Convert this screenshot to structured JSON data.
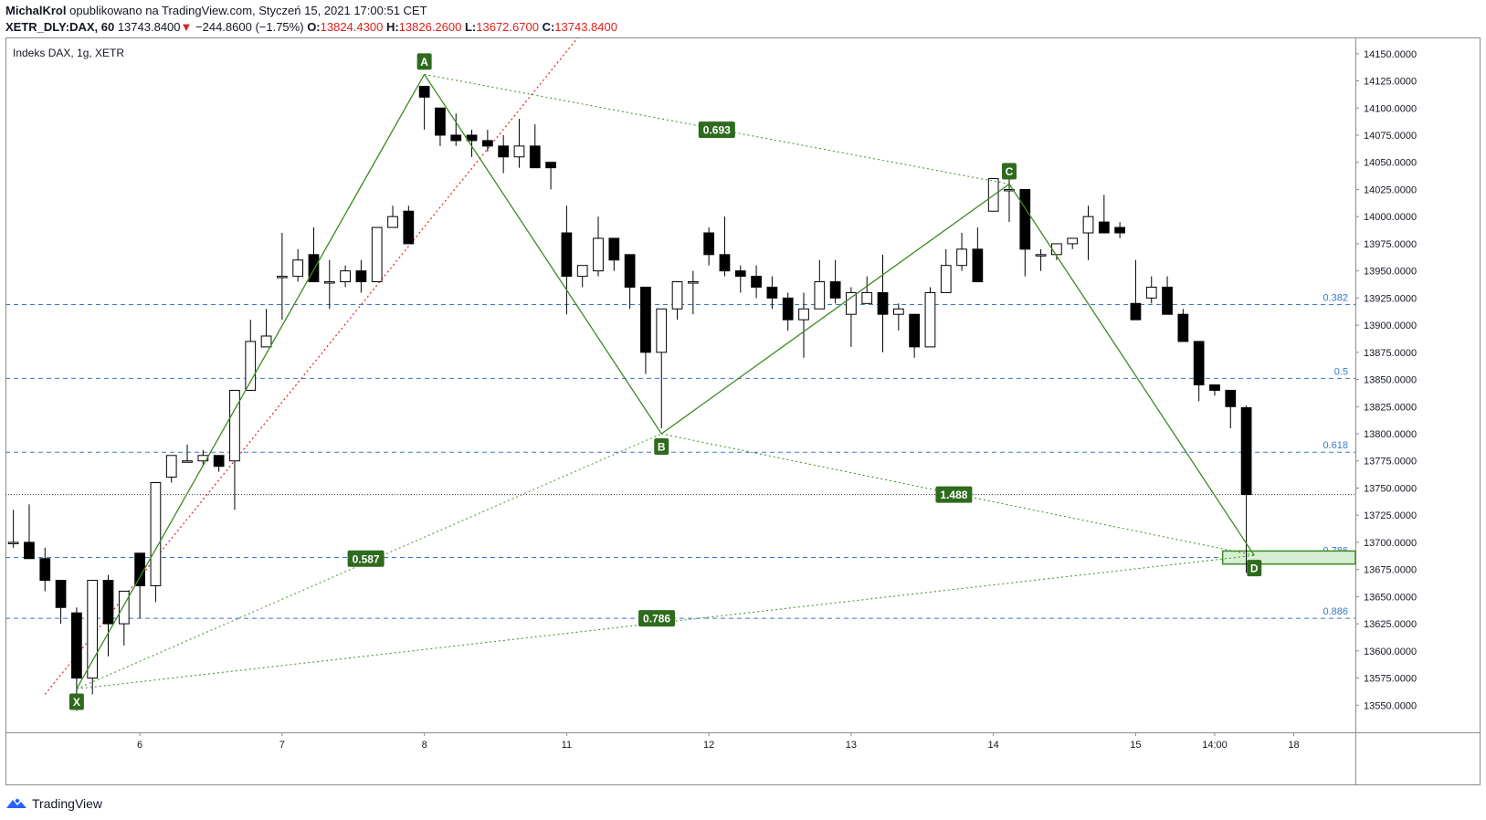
{
  "header": {
    "author": "MichalKrol",
    "published": "opublikowano na TradingView.com, Styczeń 15, 2021 17:00:51 CET",
    "symbol": "XETR_DLY:DAX, 60",
    "last": "13743.8400",
    "arrow": "▼",
    "change": "−244.8600 (−1.75%)",
    "o_label": "O:",
    "o_value": "13824.4300",
    "h_label": "H:",
    "h_value": "13826.2600",
    "l_label": "L:",
    "l_value": "13672.6700",
    "c_label": "C:",
    "c_value": "13743.8400"
  },
  "footer": {
    "brand": "TradingView"
  },
  "colors": {
    "pattern_green": "#3b8a24",
    "fib_blue": "#3a78c9",
    "ray_red": "#e02020",
    "label_bg": "#2e6b1e",
    "zone_fill": "#d8eed3",
    "zone_border": "#3b8a24"
  },
  "chart_data": {
    "type": "candlestick",
    "title": "Indeks DAX, 1g, XETR",
    "xlabel": "",
    "ylabel": "",
    "ylim": [
      13525,
      14165
    ],
    "yticks": [
      13550,
      13575,
      13600,
      13625,
      13650,
      13675,
      13700,
      13725,
      13750,
      13775,
      13800,
      13825,
      13850,
      13875,
      13900,
      13925,
      13950,
      13975,
      14000,
      14025,
      14050,
      14075,
      14100,
      14125,
      14150
    ],
    "x_range": [
      0,
      85.4
    ],
    "x_ticks": [
      {
        "x": 8.5,
        "label": "6"
      },
      {
        "x": 17.5,
        "label": "7"
      },
      {
        "x": 26.5,
        "label": "8"
      },
      {
        "x": 35.5,
        "label": "11"
      },
      {
        "x": 44.5,
        "label": "12"
      },
      {
        "x": 53.5,
        "label": "13"
      },
      {
        "x": 62.5,
        "label": "14"
      },
      {
        "x": 71.5,
        "label": "15"
      },
      {
        "x": 76.5,
        "label": "14:00"
      },
      {
        "x": 81.5,
        "label": "18"
      }
    ],
    "candles": [
      [
        13730,
        13695,
        13700,
        13700
      ],
      [
        13735,
        13685,
        13700,
        13685
      ],
      [
        13695,
        13655,
        13685,
        13665
      ],
      [
        13665,
        13625,
        13665,
        13640
      ],
      [
        13640,
        13545,
        13635,
        13575
      ],
      [
        13580,
        13560,
        13575,
        13665
      ],
      [
        13670,
        13595,
        13665,
        13625
      ],
      [
        13630,
        13605,
        13625,
        13655
      ],
      [
        13690,
        13630,
        13690,
        13660
      ],
      [
        13745,
        13645,
        13660,
        13755
      ],
      [
        13780,
        13755,
        13760,
        13780
      ],
      [
        13790,
        13775,
        13775,
        13775
      ],
      [
        13785,
        13770,
        13775,
        13780
      ],
      [
        13780,
        13765,
        13780,
        13770
      ],
      [
        13840,
        13730,
        13775,
        13840
      ],
      [
        13905,
        13840,
        13840,
        13885
      ],
      [
        13915,
        13880,
        13880,
        13890
      ],
      [
        13985,
        13905,
        13945,
        13945
      ],
      [
        13970,
        13940,
        13945,
        13960
      ],
      [
        13990,
        13940,
        13965,
        13940
      ],
      [
        13960,
        13915,
        13940,
        13940
      ],
      [
        13955,
        13935,
        13940,
        13950
      ],
      [
        13960,
        13930,
        13950,
        13940
      ],
      [
        13990,
        13940,
        13940,
        13990
      ],
      [
        14010,
        13990,
        13990,
        14000
      ],
      [
        14010,
        13985,
        14005,
        13975
      ],
      [
        14120,
        14080,
        14120,
        14110
      ],
      [
        14100,
        14065,
        14100,
        14075
      ],
      [
        14095,
        14065,
        14075,
        14070
      ],
      [
        14080,
        14055,
        14075,
        14070
      ],
      [
        14080,
        14060,
        14070,
        14065
      ],
      [
        14075,
        14040,
        14065,
        14055
      ],
      [
        14090,
        14045,
        14055,
        14065
      ],
      [
        14085,
        14055,
        14065,
        14045
      ],
      [
        14050,
        14025,
        14050,
        14045
      ],
      [
        14010,
        13910,
        13985,
        13945
      ],
      [
        13955,
        13935,
        13945,
        13955
      ],
      [
        14000,
        13945,
        13950,
        13980
      ],
      [
        13980,
        13950,
        13980,
        13960
      ],
      [
        13965,
        13915,
        13965,
        13935
      ],
      [
        13935,
        13855,
        13935,
        13875
      ],
      [
        13895,
        13805,
        13875,
        13915
      ],
      [
        13940,
        13905,
        13915,
        13940
      ],
      [
        13950,
        13910,
        13940,
        13940
      ],
      [
        13990,
        13955,
        13985,
        13965
      ],
      [
        14000,
        13945,
        13965,
        13950
      ],
      [
        13955,
        13930,
        13950,
        13945
      ],
      [
        13955,
        13925,
        13945,
        13935
      ],
      [
        13945,
        13915,
        13935,
        13925
      ],
      [
        13930,
        13895,
        13925,
        13905
      ],
      [
        13930,
        13870,
        13905,
        13915
      ],
      [
        13960,
        13915,
        13915,
        13940
      ],
      [
        13960,
        13920,
        13940,
        13925
      ],
      [
        13935,
        13880,
        13910,
        13930
      ],
      [
        13945,
        13920,
        13920,
        13930
      ],
      [
        13965,
        13875,
        13930,
        13910
      ],
      [
        13920,
        13895,
        13910,
        13915
      ],
      [
        13910,
        13870,
        13910,
        13880
      ],
      [
        13935,
        13880,
        13880,
        13930
      ],
      [
        13970,
        13930,
        13930,
        13955
      ],
      [
        13985,
        13950,
        13955,
        13970
      ],
      [
        13990,
        13940,
        13970,
        13940
      ],
      [
        14035,
        14005,
        14005,
        14035
      ],
      [
        14035,
        13995,
        14025,
        14025
      ],
      [
        14025,
        13945,
        14025,
        13970
      ],
      [
        13970,
        13950,
        13965,
        13965
      ],
      [
        13975,
        13960,
        13965,
        13975
      ],
      [
        13980,
        13970,
        13975,
        13980
      ],
      [
        14010,
        13960,
        13985,
        14000
      ],
      [
        14020,
        13990,
        13995,
        13985
      ],
      [
        13995,
        13980,
        13990,
        13985
      ],
      [
        13960,
        13910,
        13920,
        13905
      ],
      [
        13945,
        13920,
        13925,
        13935
      ],
      [
        13945,
        13910,
        13935,
        13910
      ],
      [
        13915,
        13890,
        13910,
        13885
      ],
      [
        13885,
        13830,
        13885,
        13845
      ],
      [
        13845,
        13835,
        13845,
        13840
      ],
      [
        13840,
        13805,
        13840,
        13825
      ],
      [
        13826,
        13672,
        13824,
        13744
      ]
    ],
    "pattern_points": [
      {
        "label": "X",
        "x": 4.5,
        "y": 13565
      },
      {
        "label": "A",
        "x": 26.5,
        "y": 14131
      },
      {
        "label": "B",
        "x": 41.5,
        "y": 13800
      },
      {
        "label": "C",
        "x": 63.5,
        "y": 14030
      },
      {
        "label": "D",
        "x": 79.0,
        "y": 13688
      }
    ],
    "ratio_labels": [
      {
        "text": "0.693",
        "x": 45.0,
        "y": 14080
      },
      {
        "text": "0.587",
        "x": 22.8,
        "y": 13685
      },
      {
        "text": "1.488",
        "x": 60.0,
        "y": 13744
      },
      {
        "text": "0.786",
        "x": 41.2,
        "y": 13630
      }
    ],
    "fib_levels": [
      {
        "label": "0.382",
        "y": 13919
      },
      {
        "label": "0.5",
        "y": 13851
      },
      {
        "label": "0.618",
        "y": 13783
      },
      {
        "label": "0.786",
        "y": 13686
      },
      {
        "label": "0.886",
        "y": 13630
      }
    ],
    "current_price": 13744,
    "red_ray": [
      {
        "x": 2.5,
        "y": 13560
      },
      {
        "x": 36.5,
        "y": 14170
      }
    ],
    "prz_zone": {
      "x0": 77.0,
      "x1": 85.4,
      "y0": 13680,
      "y1": 13692
    }
  }
}
